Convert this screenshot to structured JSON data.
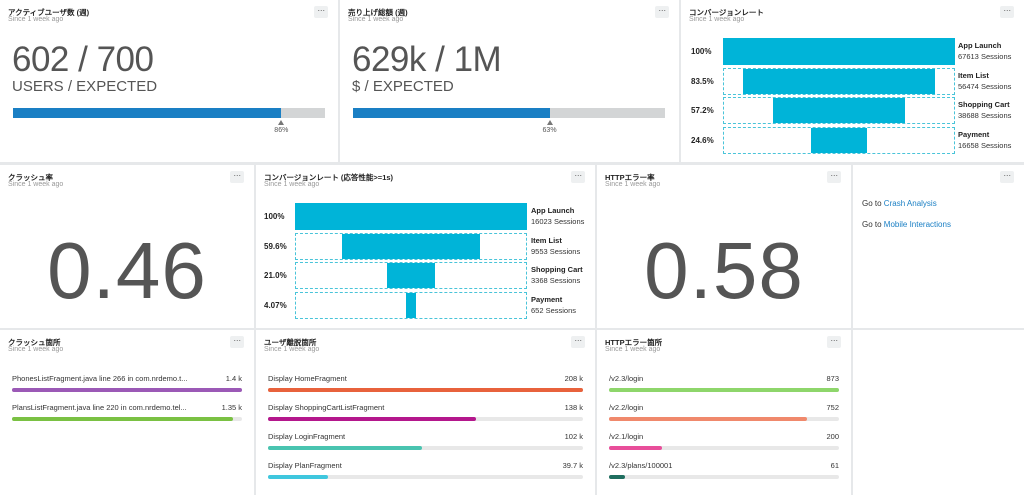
{
  "tiles": {
    "active_users": {
      "title": "アクティブユーザ数 (週)",
      "since": "Since 1 week ago",
      "menu": "···",
      "value_text": "602 / 700",
      "unit_text": "USERS / EXPECTED",
      "progress": 0.86,
      "progress_label": "86%",
      "bar_color": "#1a7fc4"
    },
    "sales": {
      "title": "売り上げ総額 (週)",
      "since": "Since 1 week ago",
      "menu": "···",
      "value_text": "629k / 1M",
      "unit_text": "$ / EXPECTED",
      "progress": 0.63,
      "progress_label": "63%",
      "bar_color": "#1a7fc4"
    },
    "conversion": {
      "title": "コンバージョンレート",
      "since": "Since 1 week ago",
      "menu": "···",
      "steps": [
        {
          "pct": "100%",
          "fraction": 1.0,
          "label": "App Launch",
          "count": "67613 Sessions"
        },
        {
          "pct": "83.5%",
          "fraction": 0.835,
          "label": "Item List",
          "count": "56474 Sessions"
        },
        {
          "pct": "57.2%",
          "fraction": 0.572,
          "label": "Shopping Cart",
          "count": "38688 Sessions"
        },
        {
          "pct": "24.6%",
          "fraction": 0.246,
          "label": "Payment",
          "count": "16658 Sessions"
        }
      ]
    },
    "crash_rate": {
      "title": "クラッシュ率",
      "since": "Since 1 week ago",
      "menu": "···",
      "value_text": "0.46 %"
    },
    "conversion_perf": {
      "title": "コンバージョンレート (応答性能>=1s)",
      "since": "Since 1 week ago",
      "menu": "···",
      "steps": [
        {
          "pct": "100%",
          "fraction": 1.0,
          "label": "App Launch",
          "count": "16023 Sessions"
        },
        {
          "pct": "59.6%",
          "fraction": 0.596,
          "label": "Item List",
          "count": "9553 Sessions"
        },
        {
          "pct": "21.0%",
          "fraction": 0.21,
          "label": "Shopping Cart",
          "count": "3368 Sessions"
        },
        {
          "pct": "4.07%",
          "fraction": 0.0407,
          "label": "Payment",
          "count": "652 Sessions"
        }
      ]
    },
    "http_error_rate": {
      "title": "HTTPエラー率",
      "since": "Since 1 week ago",
      "menu": "···",
      "value_text": "0.58 %"
    },
    "links": {
      "menu": "···",
      "items": [
        {
          "prefix": "Go to ",
          "link": "Crash Analysis"
        },
        {
          "prefix": "Go to ",
          "link": "Mobile Interactions"
        }
      ]
    },
    "crash_locations": {
      "title": "クラッシュ箇所",
      "since": "Since 1 week ago",
      "menu": "···",
      "items": [
        {
          "label": "PhonesListFragment.java line 266 in com.nrdemo.t...",
          "value": "1.4 k",
          "fraction": 1.0,
          "color": "#9b59b6"
        },
        {
          "label": "PlansListFragment.java line 220 in com.nrdemo.tel...",
          "value": "1.35 k",
          "fraction": 0.96,
          "color": "#7ac143"
        }
      ]
    },
    "user_exit": {
      "title": "ユーザ離脱箇所",
      "since": "Since 1 week ago",
      "menu": "···",
      "items": [
        {
          "label": "Display HomeFragment",
          "value": "208 k",
          "fraction": 1.0,
          "color": "#e8623c"
        },
        {
          "label": "Display ShoppingCartListFragment",
          "value": "138 k",
          "fraction": 0.66,
          "color": "#b4178c"
        },
        {
          "label": "Display LoginFragment",
          "value": "102 k",
          "fraction": 0.49,
          "color": "#49c4b0"
        },
        {
          "label": "Display PlanFragment",
          "value": "39.7 k",
          "fraction": 0.19,
          "color": "#3fc7de"
        }
      ]
    },
    "http_error_locations": {
      "title": "HTTPエラー箇所",
      "since": "Since 1 week ago",
      "menu": "···",
      "items": [
        {
          "label": "/v2.3/login",
          "value": "873",
          "fraction": 1.0,
          "color": "#8ed66b"
        },
        {
          "label": "/v2.2/login",
          "value": "752",
          "fraction": 0.86,
          "color": "#f0896c"
        },
        {
          "label": "/v2.1/login",
          "value": "200",
          "fraction": 0.23,
          "color": "#e84e9a"
        },
        {
          "label": "/v2.3/plans/100001",
          "value": "61",
          "fraction": 0.07,
          "color": "#1f6e5f"
        }
      ]
    }
  }
}
